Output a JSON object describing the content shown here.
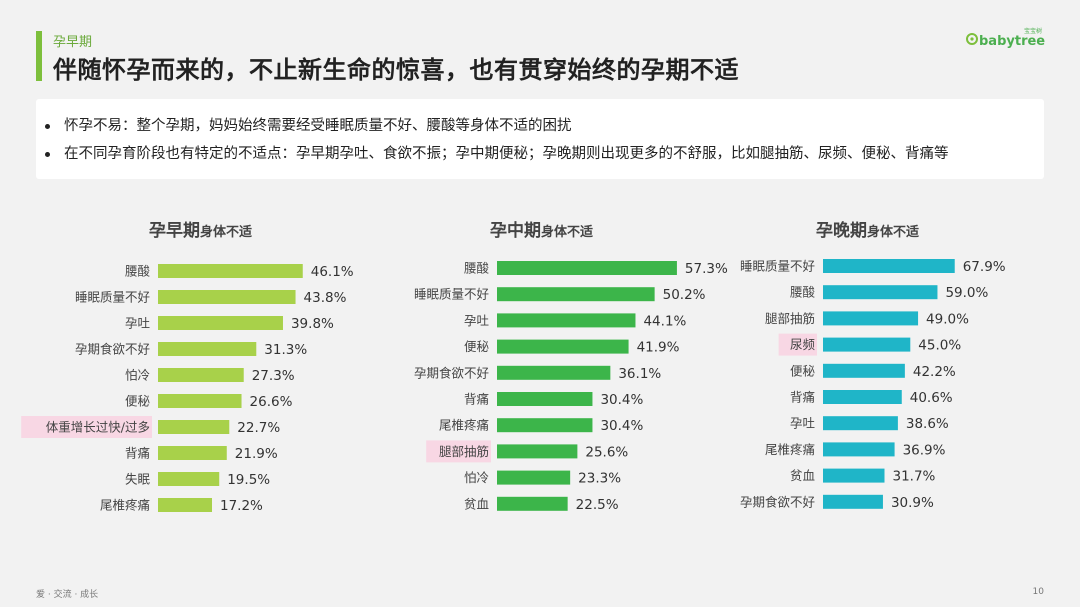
{
  "header": {
    "section_label": "孕早期",
    "title": "伴随怀孕而来的，不止新生命的惊喜，也有贯穿始终的孕期不适"
  },
  "logo": {
    "text": "babytree",
    "small_text": "宝宝树",
    "icon": "babytree-logo-icon"
  },
  "summary": {
    "bullets": [
      "怀孕不易：整个孕期，妈妈始终需要经受睡眠质量不好、腰酸等身体不适的困扰",
      "在不同孕育阶段也有特定的不适点：孕早期孕吐、食欲不振；孕中期便秘；孕晚期则出现更多的不舒服，比如腿抽筋、尿频、便秘、背痛等"
    ]
  },
  "footer": {
    "text": "爱 · 交流 · 成长",
    "page_number": "10"
  },
  "chart_data": [
    {
      "type": "bar",
      "orientation": "horizontal",
      "title": "孕早期",
      "subtitle": "身体不适",
      "color": "#a8d14a",
      "highlight_color": "#f8d7e4",
      "categories": [
        "腰酸",
        "睡眠质量不好",
        "孕吐",
        "孕期食欲不好",
        "怕冷",
        "便秘",
        "体重增长过快/过多",
        "背痛",
        "失眠",
        "尾椎疼痛"
      ],
      "values": [
        46.1,
        43.8,
        39.8,
        31.3,
        27.3,
        26.6,
        22.7,
        21.9,
        19.5,
        17.2
      ],
      "labels": [
        "46.1%",
        "43.8%",
        "39.8%",
        "31.3%",
        "27.3%",
        "26.6%",
        "22.7%",
        "21.9%",
        "19.5%",
        "17.2%"
      ],
      "highlighted": [
        "体重增长过快/过多"
      ]
    },
    {
      "type": "bar",
      "orientation": "horizontal",
      "title": "孕中期",
      "subtitle": "身体不适",
      "color": "#3cb54a",
      "highlight_color": "#f8d7e4",
      "categories": [
        "腰酸",
        "睡眠质量不好",
        "孕吐",
        "便秘",
        "孕期食欲不好",
        "背痛",
        "尾椎疼痛",
        "腿部抽筋",
        "怕冷",
        "贫血"
      ],
      "values": [
        57.3,
        50.2,
        44.1,
        41.9,
        36.1,
        30.4,
        30.4,
        25.6,
        23.3,
        22.5
      ],
      "labels": [
        "57.3%",
        "50.2%",
        "44.1%",
        "41.9%",
        "36.1%",
        "30.4%",
        "30.4%",
        "25.6%",
        "23.3%",
        "22.5%"
      ],
      "highlighted": [
        "腿部抽筋"
      ]
    },
    {
      "type": "bar",
      "orientation": "horizontal",
      "title": "孕晚期",
      "subtitle": "身体不适",
      "color": "#1fb5c8",
      "highlight_color": "#f8d7e4",
      "categories": [
        "睡眠质量不好",
        "腰酸",
        "腿部抽筋",
        "尿频",
        "便秘",
        "背痛",
        "孕吐",
        "尾椎疼痛",
        "贫血",
        "孕期食欲不好"
      ],
      "values": [
        67.9,
        59.0,
        49.0,
        45.0,
        42.2,
        40.6,
        38.6,
        36.9,
        31.7,
        30.9
      ],
      "labels": [
        "67.9%",
        "59.0%",
        "49.0%",
        "45.0%",
        "42.2%",
        "40.6%",
        "38.6%",
        "36.9%",
        "31.7%",
        "30.9%"
      ],
      "highlighted": [
        "尿频"
      ]
    }
  ]
}
